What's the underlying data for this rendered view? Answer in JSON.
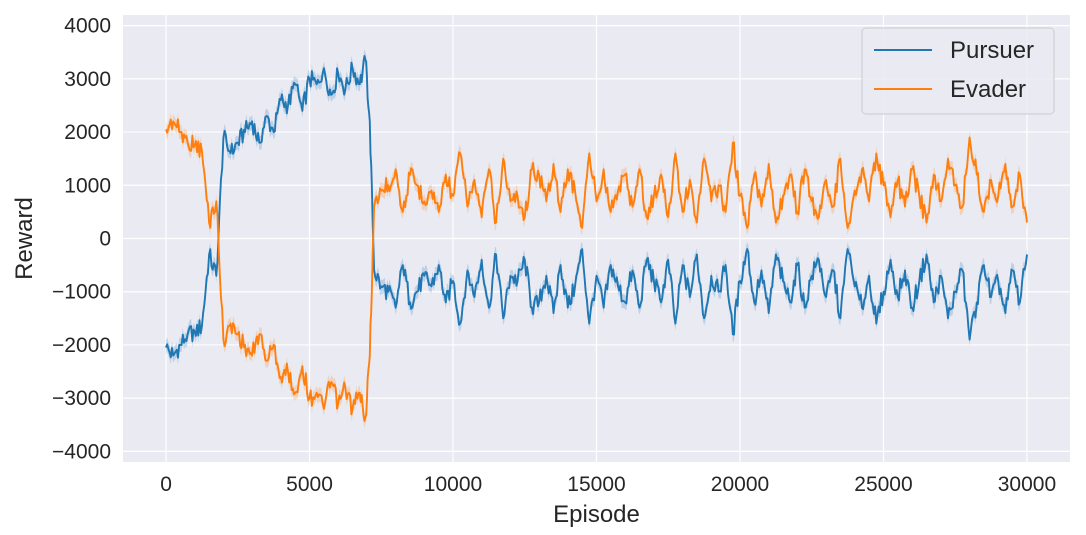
{
  "chart_data": {
    "type": "line",
    "title": "",
    "xlabel": "Episode",
    "ylabel": "Reward",
    "xlim": [
      -1500,
      31500
    ],
    "ylim": [
      -4200,
      4200
    ],
    "xticks": [
      0,
      5000,
      10000,
      15000,
      20000,
      25000,
      30000
    ],
    "xtick_labels": [
      "0",
      "5000",
      "10000",
      "15000",
      "20000",
      "25000",
      "30000"
    ],
    "yticks": [
      -4000,
      -3000,
      -2000,
      -1000,
      0,
      1000,
      2000,
      3000,
      4000
    ],
    "ytick_labels": [
      "−4000",
      "−3000",
      "−2000",
      "−1000",
      "0",
      "1000",
      "2000",
      "3000",
      "4000"
    ],
    "grid": true,
    "legend": "top-right",
    "series": [
      {
        "name": "Pursuer",
        "color": "#1f77b4",
        "x": [
          0,
          250,
          500,
          750,
          1000,
          1250,
          1500,
          1750,
          2000,
          2250,
          2500,
          2750,
          3000,
          3250,
          3500,
          3750,
          4000,
          4250,
          4500,
          4750,
          5000,
          5250,
          5500,
          5750,
          6000,
          6250,
          6500,
          6750,
          6950,
          7100,
          7250,
          7500,
          7750,
          8000,
          8250,
          8500,
          8750,
          9000,
          9250,
          9500,
          9750,
          10000,
          10250,
          10500,
          10750,
          11000,
          11250,
          11500,
          11750,
          12000,
          12250,
          12500,
          12750,
          13000,
          13250,
          13500,
          13750,
          14000,
          14250,
          14500,
          14750,
          15000,
          15250,
          15500,
          15750,
          16000,
          16250,
          16500,
          16750,
          17000,
          17250,
          17500,
          17750,
          18000,
          18250,
          18500,
          18750,
          19000,
          19250,
          19500,
          19750,
          20000,
          20250,
          20500,
          20750,
          21000,
          21250,
          21500,
          21750,
          22000,
          22250,
          22500,
          22750,
          23000,
          23250,
          23500,
          23750,
          24000,
          24250,
          24500,
          24750,
          25000,
          25250,
          25500,
          25750,
          26000,
          26250,
          26500,
          26750,
          27000,
          27250,
          27500,
          27750,
          28000,
          28250,
          28500,
          28750,
          29000,
          29250,
          29500,
          29750,
          30000
        ],
        "y": [
          -2050,
          -2200,
          -2000,
          -1800,
          -1750,
          -1650,
          -300,
          -700,
          1900,
          1600,
          1800,
          2000,
          2200,
          1800,
          2300,
          2000,
          2600,
          2500,
          2900,
          2400,
          3000,
          2900,
          3200,
          2700,
          3100,
          2800,
          3200,
          2900,
          3350,
          2200,
          -600,
          -900,
          -1000,
          -1300,
          -500,
          -1200,
          -1000,
          -700,
          -900,
          -500,
          -1200,
          -800,
          -1600,
          -600,
          -1100,
          -400,
          -1300,
          -300,
          -1500,
          -700,
          -800,
          -400,
          -1300,
          -1200,
          -700,
          -1400,
          -500,
          -1300,
          -900,
          -200,
          -1600,
          -700,
          -1300,
          -500,
          -900,
          -1200,
          -600,
          -1300,
          -400,
          -800,
          -1200,
          -400,
          -1600,
          -500,
          -1100,
          -300,
          -1500,
          -700,
          -1000,
          -500,
          -1800,
          -800,
          -200,
          -1200,
          -600,
          -1400,
          -300,
          -800,
          -1200,
          -500,
          -1300,
          -700,
          -400,
          -1100,
          -600,
          -1500,
          -200,
          -900,
          -1300,
          -700,
          -1600,
          -1000,
          -400,
          -1100,
          -600,
          -1300,
          -800,
          -300,
          -1200,
          -700,
          -1500,
          -1000,
          -600,
          -1900,
          -1200,
          -500,
          -1100,
          -800,
          -1400,
          -600,
          -1200,
          -300
        ]
      },
      {
        "name": "Evader",
        "color": "#ff7f0e",
        "x": [
          0,
          250,
          500,
          750,
          1000,
          1250,
          1500,
          1750,
          2000,
          2250,
          2500,
          2750,
          3000,
          3250,
          3500,
          3750,
          4000,
          4250,
          4500,
          4750,
          5000,
          5250,
          5500,
          5750,
          6000,
          6250,
          6500,
          6750,
          6950,
          7100,
          7250,
          7500,
          7750,
          8000,
          8250,
          8500,
          8750,
          9000,
          9250,
          9500,
          9750,
          10000,
          10250,
          10500,
          10750,
          11000,
          11250,
          11500,
          11750,
          12000,
          12250,
          12500,
          12750,
          13000,
          13250,
          13500,
          13750,
          14000,
          14250,
          14500,
          14750,
          15000,
          15250,
          15500,
          15750,
          16000,
          16250,
          16500,
          16750,
          17000,
          17250,
          17500,
          17750,
          18000,
          18250,
          18500,
          18750,
          19000,
          19250,
          19500,
          19750,
          20000,
          20250,
          20500,
          20750,
          21000,
          21250,
          21500,
          21750,
          22000,
          22250,
          22500,
          22750,
          23000,
          23250,
          23500,
          23750,
          24000,
          24250,
          24500,
          24750,
          25000,
          25250,
          25500,
          25750,
          26000,
          26250,
          26500,
          26750,
          27000,
          27250,
          27500,
          27750,
          28000,
          28250,
          28500,
          28750,
          29000,
          29250,
          29500,
          29750,
          30000
        ],
        "y": [
          2050,
          2200,
          2000,
          1800,
          1750,
          1650,
          300,
          700,
          -1900,
          -1600,
          -1800,
          -2000,
          -2200,
          -1800,
          -2300,
          -2000,
          -2600,
          -2500,
          -2900,
          -2400,
          -3000,
          -2900,
          -3200,
          -2700,
          -3100,
          -2800,
          -3200,
          -2900,
          -3350,
          -2200,
          600,
          900,
          1000,
          1300,
          500,
          1200,
          1000,
          700,
          900,
          500,
          1200,
          800,
          1600,
          600,
          1100,
          400,
          1300,
          300,
          1500,
          700,
          800,
          400,
          1300,
          1200,
          700,
          1400,
          500,
          1300,
          900,
          200,
          1600,
          700,
          1300,
          500,
          900,
          1200,
          600,
          1300,
          400,
          800,
          1200,
          400,
          1600,
          500,
          1100,
          300,
          1500,
          700,
          1000,
          500,
          1800,
          800,
          200,
          1200,
          600,
          1400,
          300,
          800,
          1200,
          500,
          1300,
          700,
          400,
          1100,
          600,
          1500,
          200,
          900,
          1300,
          700,
          1600,
          1000,
          400,
          1100,
          600,
          1300,
          800,
          300,
          1200,
          700,
          1500,
          1000,
          600,
          1900,
          1200,
          500,
          1100,
          800,
          1400,
          600,
          1200,
          300
        ]
      }
    ]
  }
}
